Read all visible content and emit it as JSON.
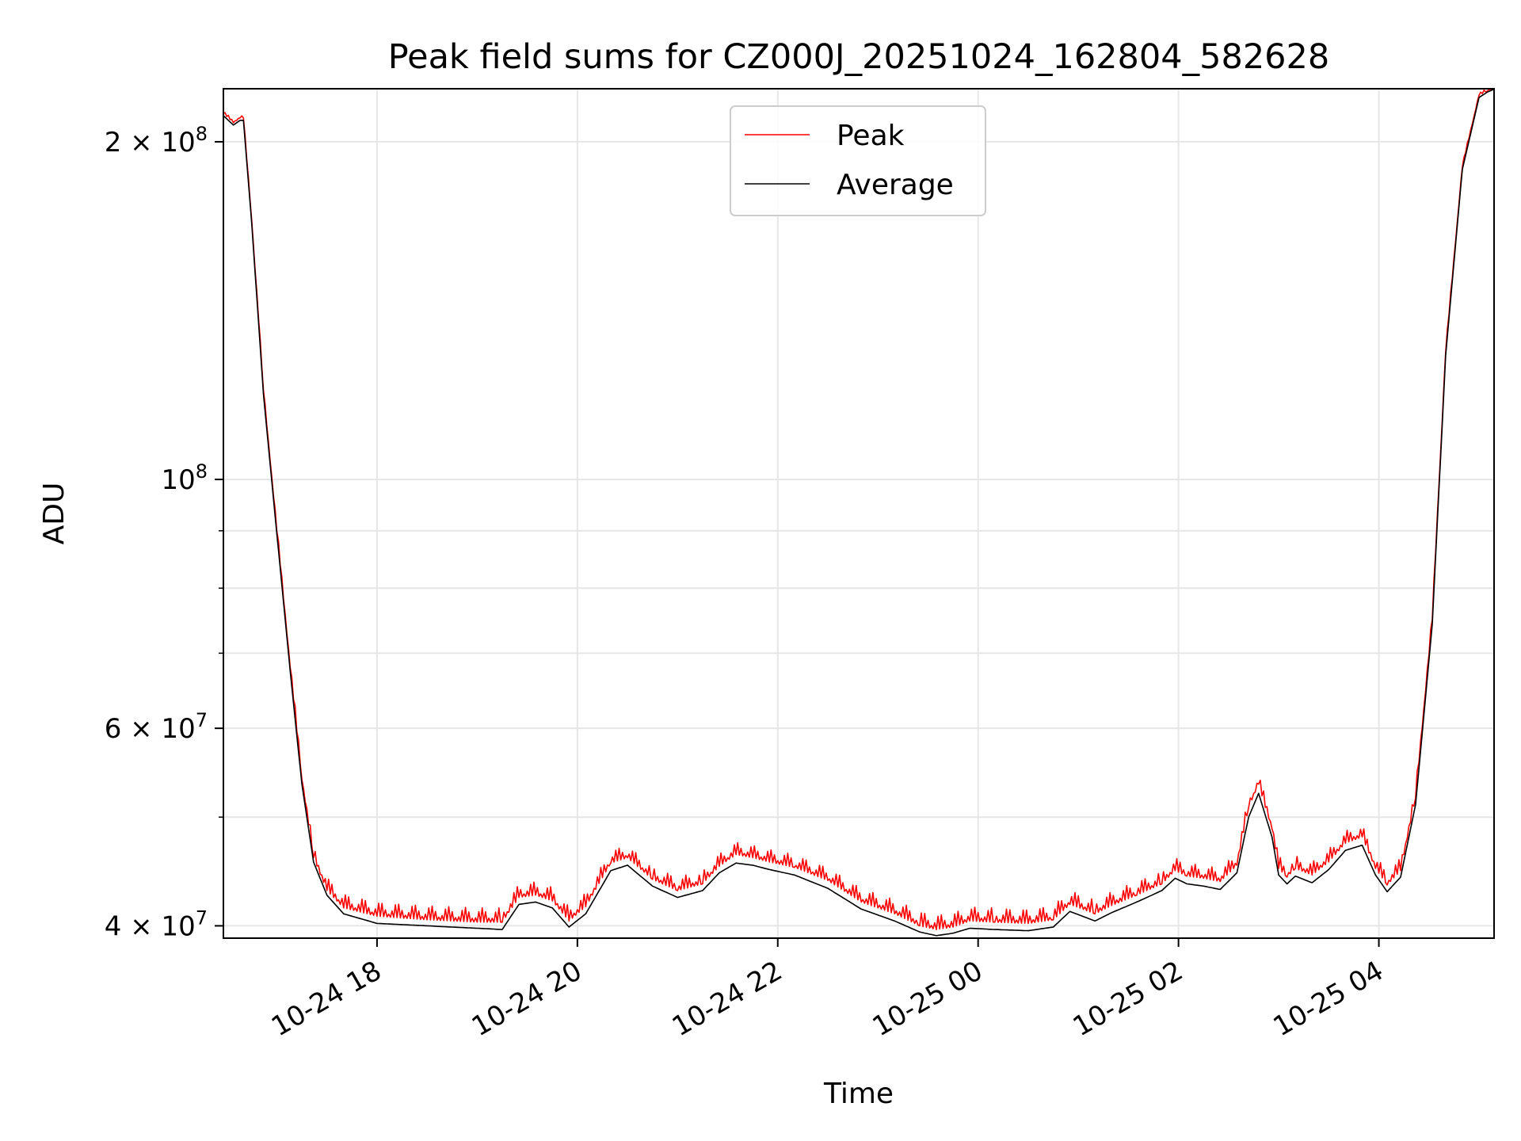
{
  "chart_data": {
    "type": "line",
    "title": "Peak field sums for CZ000J_20251024_162804_582628",
    "xlabel": "Time",
    "ylabel": "ADU",
    "yscale": "log",
    "ylim": [
      39000000,
      223000000
    ],
    "xlim": [
      "2025-10-24 16:28",
      "2025-10-25 05:09"
    ],
    "grid": true,
    "legend_position": "top-center",
    "x_ticks": [
      {
        "t": "2025-10-24 18:00",
        "label": "10-24 18"
      },
      {
        "t": "2025-10-24 20:00",
        "label": "10-24 20"
      },
      {
        "t": "2025-10-24 22:00",
        "label": "10-24 22"
      },
      {
        "t": "2025-10-25 00:00",
        "label": "10-25 00"
      },
      {
        "t": "2025-10-25 02:00",
        "label": "10-25 02"
      },
      {
        "t": "2025-10-25 04:00",
        "label": "10-25 04"
      }
    ],
    "y_ticks": [
      {
        "value": 40000000,
        "base": "4 × 10",
        "exp": "7"
      },
      {
        "value": 60000000,
        "base": "6 × 10",
        "exp": "7"
      },
      {
        "value": 100000000,
        "base": "10",
        "exp": "8"
      },
      {
        "value": 200000000,
        "base": "2 × 10",
        "exp": "8"
      }
    ],
    "y_minor_ticks": [
      50000000,
      70000000,
      80000000,
      90000000
    ],
    "series": [
      {
        "name": "Peak",
        "color": "#ff0000",
        "jitter": 1200000,
        "x": [
          "2025-10-24 16:28",
          "2025-10-24 16:34",
          "2025-10-24 16:38",
          "2025-10-24 16:40",
          "2025-10-24 16:45",
          "2025-10-24 16:52",
          "2025-10-24 17:00",
          "2025-10-24 17:08",
          "2025-10-24 17:15",
          "2025-10-24 17:22",
          "2025-10-24 17:30",
          "2025-10-24 17:40",
          "2025-10-24 18:00",
          "2025-10-24 18:30",
          "2025-10-24 19:00",
          "2025-10-24 19:15",
          "2025-10-24 19:25",
          "2025-10-24 19:35",
          "2025-10-24 19:45",
          "2025-10-24 19:55",
          "2025-10-24 20:05",
          "2025-10-24 20:20",
          "2025-10-24 20:30",
          "2025-10-24 20:45",
          "2025-10-24 21:00",
          "2025-10-24 21:15",
          "2025-10-24 21:25",
          "2025-10-24 21:35",
          "2025-10-24 21:45",
          "2025-10-24 21:55",
          "2025-10-24 22:10",
          "2025-10-24 22:30",
          "2025-10-24 22:50",
          "2025-10-24 23:10",
          "2025-10-24 23:25",
          "2025-10-24 23:35",
          "2025-10-24 23:45",
          "2025-10-24 23:55",
          "2025-10-25 00:10",
          "2025-10-25 00:30",
          "2025-10-25 00:45",
          "2025-10-25 00:55",
          "2025-10-25 01:10",
          "2025-10-25 01:20",
          "2025-10-25 01:35",
          "2025-10-25 01:50",
          "2025-10-25 01:58",
          "2025-10-25 02:05",
          "2025-10-25 02:15",
          "2025-10-25 02:25",
          "2025-10-25 02:35",
          "2025-10-25 02:42",
          "2025-10-25 02:48",
          "2025-10-25 02:52",
          "2025-10-25 02:56",
          "2025-10-25 03:00",
          "2025-10-25 03:05",
          "2025-10-25 03:10",
          "2025-10-25 03:20",
          "2025-10-25 03:30",
          "2025-10-25 03:40",
          "2025-10-25 03:50",
          "2025-10-25 03:58",
          "2025-10-25 04:05",
          "2025-10-25 04:13",
          "2025-10-25 04:22",
          "2025-10-25 04:32",
          "2025-10-25 04:40",
          "2025-10-25 04:50",
          "2025-10-25 05:00",
          "2025-10-25 05:05",
          "2025-10-25 05:09"
        ],
        "y": [
          212000000,
          208000000,
          210000000,
          210000000,
          170000000,
          120000000,
          90000000,
          68000000,
          54000000,
          46000000,
          43000000,
          41500000,
          40800000,
          40500000,
          40300000,
          40300000,
          42400000,
          42600000,
          42100000,
          40400000,
          41600000,
          45500000,
          46000000,
          44000000,
          43000000,
          43600000,
          45200000,
          46300000,
          46000000,
          45600000,
          45100000,
          43900000,
          42000000,
          41000000,
          40000000,
          39700000,
          39900000,
          40400000,
          40300000,
          40200000,
          40500000,
          41800000,
          41000000,
          41700000,
          42600000,
          43600000,
          44800000,
          44300000,
          44100000,
          43800000,
          45300000,
          51000000,
          53500000,
          51000000,
          48800000,
          45000000,
          44200000,
          45000000,
          44400000,
          45600000,
          47400000,
          48000000,
          45000000,
          43500000,
          44800000,
          52000000,
          75000000,
          130000000,
          190000000,
          220000000,
          222000000,
          223000000
        ]
      },
      {
        "name": "Average",
        "color": "#000000",
        "jitter": 0,
        "x": [
          "2025-10-24 16:28",
          "2025-10-24 16:34",
          "2025-10-24 16:38",
          "2025-10-24 16:40",
          "2025-10-24 16:45",
          "2025-10-24 16:52",
          "2025-10-24 17:00",
          "2025-10-24 17:08",
          "2025-10-24 17:15",
          "2025-10-24 17:22",
          "2025-10-24 17:30",
          "2025-10-24 17:40",
          "2025-10-24 18:00",
          "2025-10-24 18:30",
          "2025-10-24 19:00",
          "2025-10-24 19:15",
          "2025-10-24 19:25",
          "2025-10-24 19:35",
          "2025-10-24 19:45",
          "2025-10-24 19:55",
          "2025-10-24 20:05",
          "2025-10-24 20:20",
          "2025-10-24 20:30",
          "2025-10-24 20:45",
          "2025-10-24 21:00",
          "2025-10-24 21:15",
          "2025-10-24 21:25",
          "2025-10-24 21:35",
          "2025-10-24 21:45",
          "2025-10-24 21:55",
          "2025-10-24 22:10",
          "2025-10-24 22:30",
          "2025-10-24 22:50",
          "2025-10-24 23:10",
          "2025-10-24 23:25",
          "2025-10-24 23:35",
          "2025-10-24 23:45",
          "2025-10-24 23:55",
          "2025-10-25 00:10",
          "2025-10-25 00:30",
          "2025-10-25 00:45",
          "2025-10-25 00:55",
          "2025-10-25 01:10",
          "2025-10-25 01:20",
          "2025-10-25 01:35",
          "2025-10-25 01:50",
          "2025-10-25 01:58",
          "2025-10-25 02:05",
          "2025-10-25 02:15",
          "2025-10-25 02:25",
          "2025-10-25 02:35",
          "2025-10-25 02:42",
          "2025-10-25 02:48",
          "2025-10-25 02:52",
          "2025-10-25 02:56",
          "2025-10-25 03:00",
          "2025-10-25 03:05",
          "2025-10-25 03:10",
          "2025-10-25 03:20",
          "2025-10-25 03:30",
          "2025-10-25 03:40",
          "2025-10-25 03:50",
          "2025-10-25 03:58",
          "2025-10-25 04:05",
          "2025-10-25 04:13",
          "2025-10-25 04:22",
          "2025-10-25 04:32",
          "2025-10-25 04:40",
          "2025-10-25 04:50",
          "2025-10-25 05:00",
          "2025-10-25 05:05",
          "2025-10-25 05:09"
        ],
        "y": [
          211000000,
          207000000,
          209000000,
          209000000,
          169000000,
          119000000,
          89500000,
          67500000,
          53500000,
          45600000,
          42600000,
          41000000,
          40200000,
          40000000,
          39800000,
          39700000,
          41800000,
          42000000,
          41500000,
          39900000,
          41000000,
          44800000,
          45300000,
          43400000,
          42400000,
          43000000,
          44600000,
          45500000,
          45300000,
          44900000,
          44400000,
          43200000,
          41400000,
          40400000,
          39500000,
          39200000,
          39400000,
          39800000,
          39700000,
          39600000,
          39900000,
          41200000,
          40400000,
          41100000,
          42000000,
          43000000,
          44100000,
          43600000,
          43400000,
          43100000,
          44600000,
          50000000,
          52500000,
          50200000,
          48000000,
          44400000,
          43600000,
          44300000,
          43700000,
          44900000,
          46700000,
          47200000,
          44400000,
          42900000,
          44200000,
          51300000,
          74300000,
          129000000,
          189000000,
          219000000,
          221500000,
          222800000
        ]
      }
    ]
  }
}
